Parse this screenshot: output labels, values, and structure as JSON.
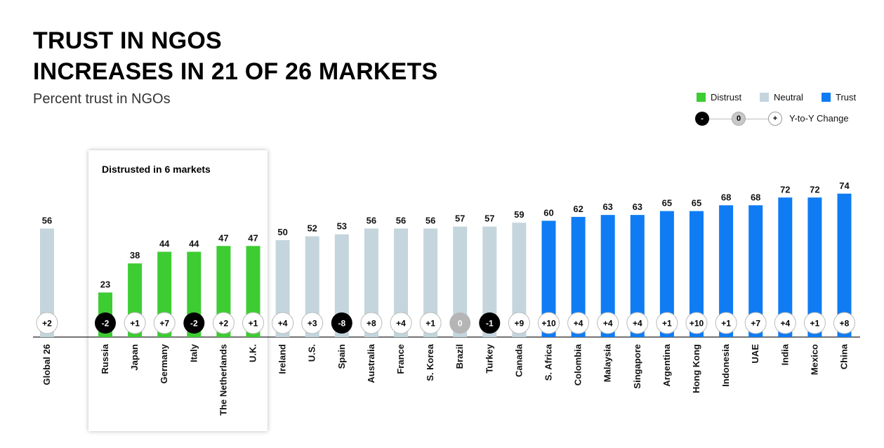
{
  "header": {
    "title_line1": "TRUST IN NGOS",
    "title_line2": "INCREASES IN 21 OF 26 MARKETS",
    "subtitle": "Percent trust in NGOs"
  },
  "legend": {
    "items": [
      {
        "label": "Distrust",
        "color": "#3dcd32"
      },
      {
        "label": "Neutral",
        "color": "#c4d5dd"
      },
      {
        "label": "Trust",
        "color": "#0f7cf4"
      }
    ],
    "yoy": {
      "neg": "-",
      "zero": "0",
      "pos": "+",
      "label": "Y-to-Y Change"
    }
  },
  "callout": {
    "title": "Distrusted in 6 markets"
  },
  "chart_data": {
    "type": "bar",
    "categories": [
      "Global 26",
      "Russia",
      "Japan",
      "Germany",
      "Italy",
      "The Netherlands",
      "U.K.",
      "Ireland",
      "U.S.",
      "Spain",
      "Australia",
      "France",
      "S. Korea",
      "Brazil",
      "Turkey",
      "Canada",
      "S. Africa",
      "Colombia",
      "Malaysia",
      "Singapore",
      "Argentina",
      "Hong Kong",
      "Indonesia",
      "UAE",
      "India",
      "Mexico",
      "China"
    ],
    "values": [
      56,
      23,
      38,
      44,
      44,
      47,
      47,
      50,
      52,
      53,
      56,
      56,
      56,
      57,
      57,
      59,
      60,
      62,
      63,
      63,
      65,
      65,
      68,
      68,
      72,
      72,
      74
    ],
    "changes": [
      "+2",
      "-2",
      "+1",
      "+7",
      "-2",
      "+2",
      "+1",
      "+4",
      "+3",
      "-8",
      "+8",
      "+4",
      "+1",
      "0",
      "-1",
      "+9",
      "+10",
      "+4",
      "+4",
      "+4",
      "+1",
      "+10",
      "+1",
      "+7",
      "+4",
      "+1",
      "+8"
    ],
    "groups": [
      "Neutral",
      "Distrust",
      "Distrust",
      "Distrust",
      "Distrust",
      "Distrust",
      "Distrust",
      "Neutral",
      "Neutral",
      "Neutral",
      "Neutral",
      "Neutral",
      "Neutral",
      "Neutral",
      "Neutral",
      "Neutral",
      "Trust",
      "Trust",
      "Trust",
      "Trust",
      "Trust",
      "Trust",
      "Trust",
      "Trust",
      "Trust",
      "Trust",
      "Trust"
    ],
    "colors": {
      "Distrust": "#3dcd32",
      "Neutral": "#c4d5dd",
      "Trust": "#0f7cf4",
      "neg_bubble": "#000000",
      "zero_bubble": "#b5b5b5",
      "pos_bubble": "#ffffff"
    },
    "title": "TRUST IN NGOS INCREASES IN 21 OF 26 MARKETS",
    "subtitle": "Percent trust in NGOs",
    "ylim": [
      0,
      100
    ],
    "grid": false,
    "legend_position": "top-right"
  }
}
